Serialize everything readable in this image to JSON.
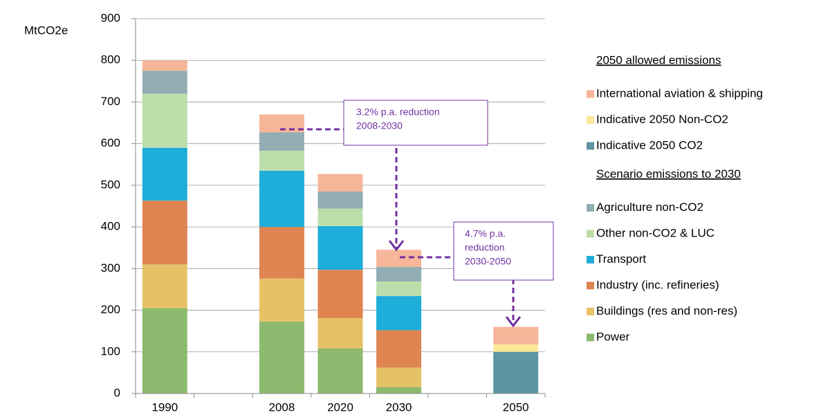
{
  "chart_data": {
    "type": "stacked_bar",
    "y_label": "MtCO2e",
    "categories": [
      "1990",
      null,
      "2008",
      "2020",
      "2030",
      null,
      "2050"
    ],
    "ylim": [
      0,
      900
    ],
    "yticks": [
      0,
      100,
      200,
      300,
      400,
      500,
      600,
      700,
      800,
      900
    ],
    "grid": true,
    "series_groups": [
      {
        "title": "Scenario emissions to 2030",
        "series": [
          {
            "name": "Power",
            "color": "#8cba6e",
            "values": [
              205,
              null,
              173,
              108,
              15,
              null,
              null
            ]
          },
          {
            "name": "Buildings (res and non-res)",
            "color": "#e6c267",
            "values": [
              105,
              null,
              103,
              73,
              47,
              null,
              null
            ]
          },
          {
            "name": "Industry (inc. refineries)",
            "color": "#de8551",
            "values": [
              153,
              null,
              124,
              116,
              90,
              null,
              null
            ]
          },
          {
            "name": "Transport",
            "color": "#1fadd9",
            "values": [
              127,
              null,
              135,
              105,
              82,
              null,
              null
            ]
          },
          {
            "name": "Other non-CO2 & LUC",
            "color": "#bcdeab",
            "values": [
              130,
              null,
              48,
              42,
              35,
              null,
              null
            ]
          },
          {
            "name": "Agriculture non-CO2",
            "color": "#92adb3",
            "values": [
              55,
              null,
              44,
              41,
              35,
              null,
              null
            ]
          }
        ]
      },
      {
        "title": "2050 allowed emissions",
        "series": [
          {
            "name": "Indicative 2050 CO2",
            "color": "#5e95a3",
            "values": [
              null,
              null,
              null,
              null,
              null,
              null,
              100
            ]
          },
          {
            "name": "Indicative 2050 Non-CO2",
            "color": "#fde89a",
            "values": [
              null,
              null,
              null,
              null,
              null,
              null,
              18
            ]
          },
          {
            "name": "International aviation & shipping",
            "color": "#f7b59a",
            "values": [
              25,
              null,
              43,
              42,
              41,
              null,
              42
            ]
          }
        ]
      }
    ],
    "annotations": [
      {
        "lines": [
          "3.2% p.a. reduction",
          "2008-2030"
        ]
      },
      {
        "lines": [
          "4.7% p.a.",
          "reduction",
          "2030-2050"
        ]
      }
    ]
  }
}
